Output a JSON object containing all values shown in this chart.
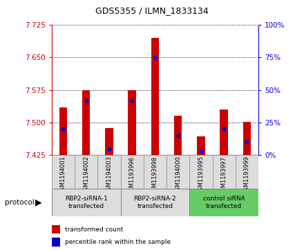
{
  "title": "GDS5355 / ILMN_1833134",
  "samples": [
    "GSM1194001",
    "GSM1194002",
    "GSM1194003",
    "GSM1193996",
    "GSM1193998",
    "GSM1194000",
    "GSM1193995",
    "GSM1193997",
    "GSM1193999"
  ],
  "transformed_counts": [
    7.535,
    7.575,
    7.487,
    7.575,
    7.695,
    7.515,
    7.468,
    7.53,
    7.502
  ],
  "percentile_ranks": [
    20,
    42,
    5,
    42,
    75,
    15,
    3,
    20,
    10
  ],
  "ylim_left": [
    7.425,
    7.725
  ],
  "ylim_right": [
    0,
    100
  ],
  "yticks_left": [
    7.425,
    7.5,
    7.575,
    7.65,
    7.725
  ],
  "yticks_right": [
    0,
    25,
    50,
    75,
    100
  ],
  "bar_color": "#cc0000",
  "percentile_color": "#0000cc",
  "left_tick_color": "#cc0000",
  "right_tick_color": "#0000cc",
  "groups": [
    {
      "label": "RBP2-siRNA-1\ntransfected",
      "indices": [
        0,
        1,
        2
      ],
      "color": "#dddddd"
    },
    {
      "label": "RBP2-siRNA-2\ntransfected",
      "indices": [
        3,
        4,
        5
      ],
      "color": "#dddddd"
    },
    {
      "label": "control siRNA\ntransfected",
      "indices": [
        6,
        7,
        8
      ],
      "color": "#66cc66"
    }
  ],
  "legend_items": [
    {
      "label": "transformed count",
      "color": "#cc0000"
    },
    {
      "label": "percentile rank within the sample",
      "color": "#0000cc"
    }
  ],
  "protocol_label": "protocol",
  "base_value": 7.425,
  "bar_width": 0.35
}
